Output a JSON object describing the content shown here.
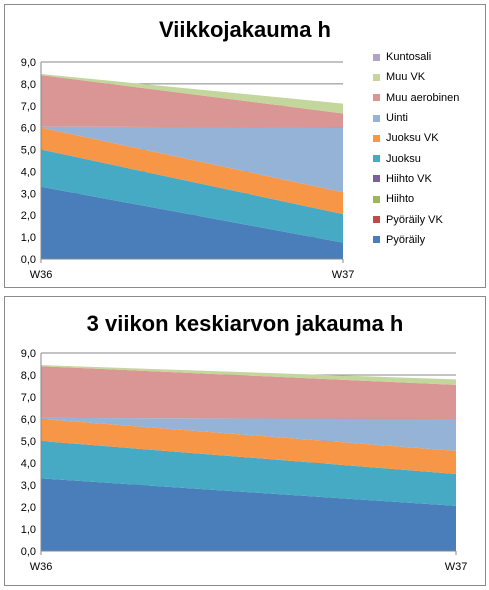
{
  "chart_data": [
    {
      "type": "area",
      "stacked": true,
      "title": "Viikkojakauma h",
      "x": [
        "W36",
        "W37"
      ],
      "ylim": [
        0,
        9
      ],
      "yticks": [
        "0,0",
        "1,0",
        "2,0",
        "3,0",
        "4,0",
        "5,0",
        "6,0",
        "7,0",
        "8,0",
        "9,0"
      ],
      "grid": true,
      "legend_position": "right",
      "series": [
        {
          "name": "Pyöräily",
          "color": "#4a7ebb",
          "values": [
            3.3,
            0.75
          ]
        },
        {
          "name": "Pyöräily VK",
          "color": "#be4b48",
          "values": [
            0,
            0
          ]
        },
        {
          "name": "Hiihto",
          "color": "#98b954",
          "values": [
            0,
            0
          ]
        },
        {
          "name": "Hiihto VK",
          "color": "#7d5fa0",
          "values": [
            0,
            0
          ]
        },
        {
          "name": "Juoksu",
          "color": "#46aac4",
          "values": [
            1.7,
            1.3
          ]
        },
        {
          "name": "Juoksu VK",
          "color": "#f79646",
          "values": [
            1.0,
            1.0
          ]
        },
        {
          "name": "Uinti",
          "color": "#95b3d7",
          "values": [
            0.05,
            2.95
          ]
        },
        {
          "name": "Muu aerobinen",
          "color": "#d99694",
          "values": [
            2.35,
            0.65
          ]
        },
        {
          "name": "Muu VK",
          "color": "#c3d69b",
          "values": [
            0.05,
            0.45
          ]
        },
        {
          "name": "Kuntosali",
          "color": "#b3a2c7",
          "values": [
            0,
            0
          ]
        }
      ]
    },
    {
      "type": "area",
      "stacked": true,
      "title": "3 viikon keskiarvon jakauma h",
      "x": [
        "W36",
        "W37"
      ],
      "ylim": [
        0,
        9
      ],
      "yticks": [
        "0,0",
        "1,0",
        "2,0",
        "3,0",
        "4,0",
        "5,0",
        "6,0",
        "7,0",
        "8,0",
        "9,0"
      ],
      "grid": true,
      "series": [
        {
          "name": "Pyöräily",
          "color": "#4a7ebb",
          "values": [
            3.3,
            2.05
          ]
        },
        {
          "name": "Pyöräily VK",
          "color": "#be4b48",
          "values": [
            0,
            0
          ]
        },
        {
          "name": "Hiihto",
          "color": "#98b954",
          "values": [
            0,
            0
          ]
        },
        {
          "name": "Hiihto VK",
          "color": "#7d5fa0",
          "values": [
            0,
            0
          ]
        },
        {
          "name": "Juoksu",
          "color": "#46aac4",
          "values": [
            1.7,
            1.45
          ]
        },
        {
          "name": "Juoksu VK",
          "color": "#f79646",
          "values": [
            1.0,
            1.05
          ]
        },
        {
          "name": "Uinti",
          "color": "#95b3d7",
          "values": [
            0.05,
            1.45
          ]
        },
        {
          "name": "Muu aerobinen",
          "color": "#d99694",
          "values": [
            2.35,
            1.55
          ]
        },
        {
          "name": "Muu VK",
          "color": "#c3d69b",
          "values": [
            0.05,
            0.25
          ]
        },
        {
          "name": "Kuntosali",
          "color": "#b3a2c7",
          "values": [
            0,
            0
          ]
        }
      ]
    }
  ]
}
